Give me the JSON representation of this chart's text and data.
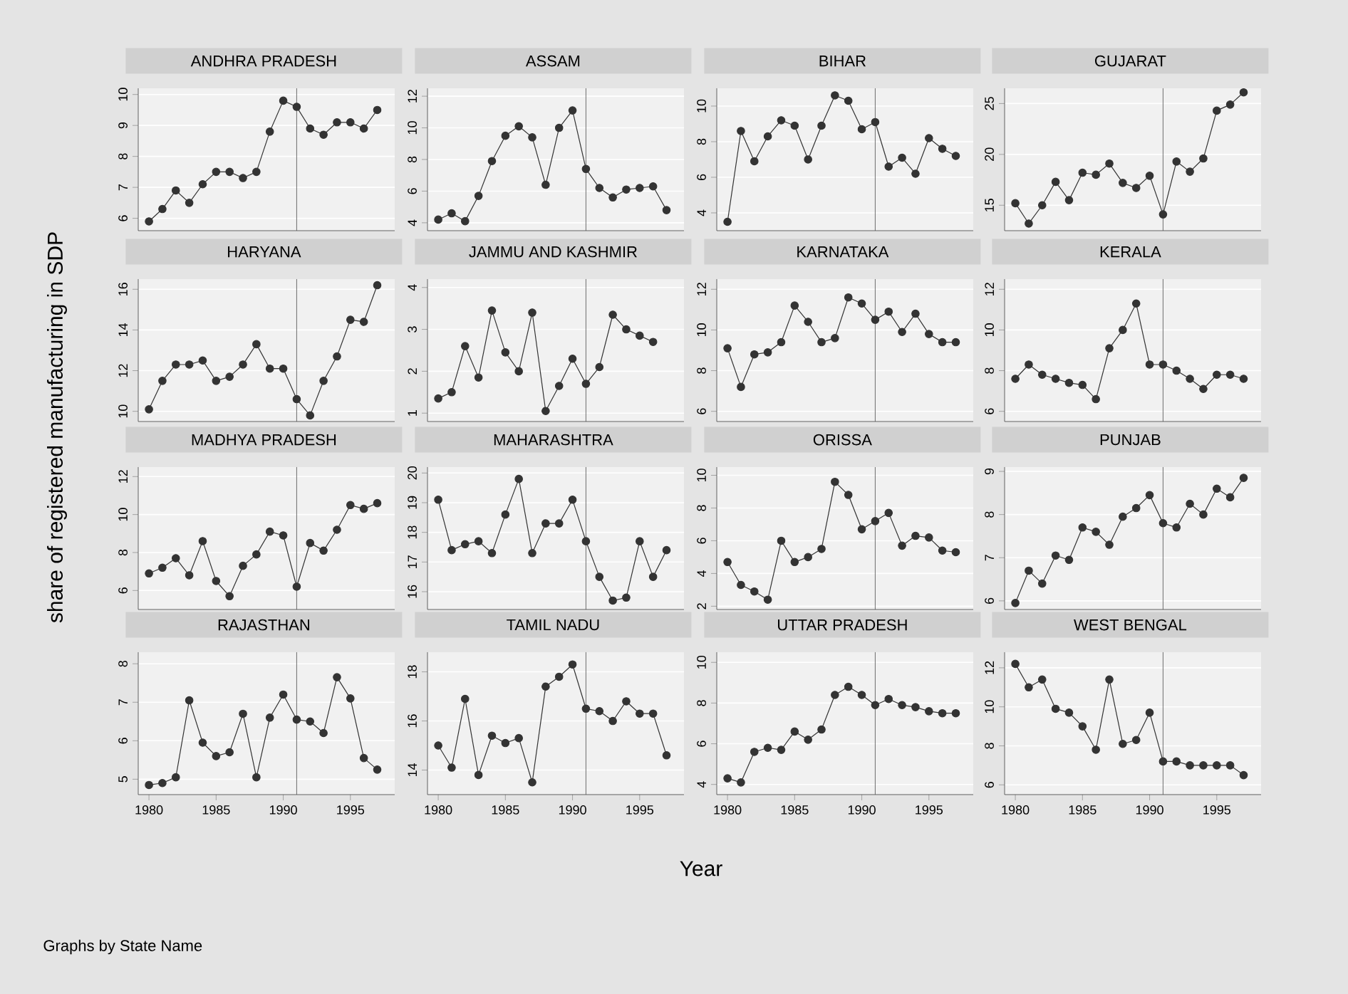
{
  "chart_data": [
    {
      "type": "line",
      "title": "ANDHRA PRADESH",
      "x": [
        1980,
        1981,
        1982,
        1983,
        1984,
        1985,
        1986,
        1987,
        1988,
        1989,
        1990,
        1991,
        1992,
        1993,
        1994,
        1995,
        1996,
        1997
      ],
      "values": [
        5.9,
        6.3,
        6.9,
        6.5,
        7.1,
        7.5,
        7.5,
        7.3,
        7.5,
        8.8,
        9.8,
        9.6,
        8.9,
        8.7,
        9.1,
        9.1,
        8.9,
        9.5
      ],
      "color": "#333333",
      "marker": "circle",
      "xlim": [
        1979.2,
        1998.3
      ],
      "xticks": [
        1980,
        1985,
        1990,
        1995
      ],
      "ylim": [
        5.6,
        10.2
      ],
      "yticks": [
        6,
        7,
        8,
        9,
        10
      ],
      "grid": "y",
      "ref_lines": [
        {
          "axis": "x",
          "value": 1991
        }
      ],
      "tick_labels": "y"
    },
    {
      "type": "line",
      "title": "ASSAM",
      "x": [
        1980,
        1981,
        1982,
        1983,
        1984,
        1985,
        1986,
        1987,
        1988,
        1989,
        1990,
        1991,
        1992,
        1993,
        1994,
        1995,
        1996,
        1997
      ],
      "values": [
        4.2,
        4.6,
        4.1,
        5.7,
        7.9,
        9.5,
        10.1,
        9.4,
        6.4,
        10.0,
        11.1,
        7.4,
        6.2,
        5.6,
        6.1,
        6.2,
        6.3,
        4.8
      ],
      "color": "#333333",
      "marker": "circle",
      "xlim": [
        1979.2,
        1998.3
      ],
      "xticks": [
        1980,
        1985,
        1990,
        1995
      ],
      "ylim": [
        3.5,
        12.5
      ],
      "yticks": [
        4,
        6,
        8,
        10,
        12
      ],
      "grid": "y",
      "ref_lines": [
        {
          "axis": "x",
          "value": 1991
        }
      ],
      "tick_labels": "y"
    },
    {
      "type": "line",
      "title": "BIHAR",
      "x": [
        1980,
        1981,
        1982,
        1983,
        1984,
        1985,
        1986,
        1987,
        1988,
        1989,
        1990,
        1991,
        1992,
        1993,
        1994,
        1995,
        1996,
        1997
      ],
      "values": [
        3.5,
        8.6,
        6.9,
        8.3,
        9.2,
        8.9,
        7.0,
        8.9,
        10.6,
        10.3,
        8.7,
        9.1,
        6.6,
        7.1,
        6.2,
        8.2,
        7.6,
        7.2
      ],
      "color": "#333333",
      "marker": "circle",
      "xlim": [
        1979.2,
        1998.3
      ],
      "xticks": [
        1980,
        1985,
        1990,
        1995
      ],
      "ylim": [
        3,
        11
      ],
      "yticks": [
        4,
        6,
        8,
        10
      ],
      "grid": "y",
      "ref_lines": [
        {
          "axis": "x",
          "value": 1991
        }
      ],
      "tick_labels": "y"
    },
    {
      "type": "line",
      "title": "GUJARAT",
      "x": [
        1980,
        1981,
        1982,
        1983,
        1984,
        1985,
        1986,
        1987,
        1988,
        1989,
        1990,
        1991,
        1992,
        1993,
        1994,
        1995,
        1996,
        1997
      ],
      "values": [
        15.2,
        13.2,
        15.0,
        17.3,
        15.5,
        18.2,
        18.0,
        19.1,
        17.2,
        16.7,
        17.9,
        14.1,
        19.3,
        18.3,
        19.6,
        24.3,
        24.9,
        26.1
      ],
      "color": "#333333",
      "marker": "circle",
      "xlim": [
        1979.2,
        1998.3
      ],
      "xticks": [
        1980,
        1985,
        1990,
        1995
      ],
      "ylim": [
        12.5,
        26.5
      ],
      "yticks": [
        15,
        20,
        25
      ],
      "grid": "y",
      "ref_lines": [
        {
          "axis": "x",
          "value": 1991
        }
      ],
      "tick_labels": "y"
    },
    {
      "type": "line",
      "title": "HARYANA",
      "x": [
        1980,
        1981,
        1982,
        1983,
        1984,
        1985,
        1986,
        1987,
        1988,
        1989,
        1990,
        1991,
        1992,
        1993,
        1994,
        1995,
        1996,
        1997
      ],
      "values": [
        10.1,
        11.5,
        12.3,
        12.3,
        12.5,
        11.5,
        11.7,
        12.3,
        13.3,
        12.1,
        12.1,
        10.6,
        9.8,
        11.5,
        12.7,
        14.5,
        14.4,
        16.2
      ],
      "color": "#333333",
      "marker": "circle",
      "xlim": [
        1979.2,
        1998.3
      ],
      "xticks": [
        1980,
        1985,
        1990,
        1995
      ],
      "ylim": [
        9.5,
        16.5
      ],
      "yticks": [
        10,
        12,
        14,
        16
      ],
      "grid": "y",
      "ref_lines": [
        {
          "axis": "x",
          "value": 1991
        }
      ],
      "tick_labels": "y"
    },
    {
      "type": "line",
      "title": "JAMMU AND KASHMIR",
      "x": [
        1980,
        1981,
        1982,
        1983,
        1984,
        1985,
        1986,
        1987,
        1988,
        1989,
        1990,
        1991,
        1992,
        1993,
        1994,
        1995,
        1996
      ],
      "values": [
        1.35,
        1.5,
        2.6,
        1.85,
        3.45,
        2.45,
        2.0,
        3.4,
        1.05,
        1.65,
        2.3,
        1.7,
        2.1,
        3.35,
        3.0,
        2.85,
        2.7
      ],
      "color": "#333333",
      "marker": "circle",
      "xlim": [
        1979.2,
        1998.3
      ],
      "xticks": [
        1980,
        1985,
        1990,
        1995
      ],
      "ylim": [
        0.8,
        4.2
      ],
      "yticks": [
        1,
        2,
        3,
        4
      ],
      "grid": "y",
      "ref_lines": [
        {
          "axis": "x",
          "value": 1991
        }
      ],
      "tick_labels": "y"
    },
    {
      "type": "line",
      "title": "KARNATAKA",
      "x": [
        1980,
        1981,
        1982,
        1983,
        1984,
        1985,
        1986,
        1987,
        1988,
        1989,
        1990,
        1991,
        1992,
        1993,
        1994,
        1995,
        1996,
        1997
      ],
      "values": [
        9.1,
        7.2,
        8.8,
        8.9,
        9.4,
        11.2,
        10.4,
        9.4,
        9.6,
        11.6,
        11.3,
        10.5,
        10.9,
        9.9,
        10.8,
        9.8,
        9.4,
        9.4
      ],
      "color": "#333333",
      "marker": "circle",
      "xlim": [
        1979.2,
        1998.3
      ],
      "xticks": [
        1980,
        1985,
        1990,
        1995
      ],
      "ylim": [
        5.5,
        12.5
      ],
      "yticks": [
        6,
        8,
        10,
        12
      ],
      "grid": "y",
      "ref_lines": [
        {
          "axis": "x",
          "value": 1991
        }
      ],
      "tick_labels": "y"
    },
    {
      "type": "line",
      "title": "KERALA",
      "x": [
        1980,
        1981,
        1982,
        1983,
        1984,
        1985,
        1986,
        1987,
        1988,
        1989,
        1990,
        1991,
        1992,
        1993,
        1994,
        1995,
        1996,
        1997
      ],
      "values": [
        7.6,
        8.3,
        7.8,
        7.6,
        7.4,
        7.3,
        6.6,
        9.1,
        10.0,
        11.3,
        8.3,
        8.3,
        8.0,
        7.6,
        7.1,
        7.8,
        7.8,
        7.6
      ],
      "color": "#333333",
      "marker": "circle",
      "xlim": [
        1979.2,
        1998.3
      ],
      "xticks": [
        1980,
        1985,
        1990,
        1995
      ],
      "ylim": [
        5.5,
        12.5
      ],
      "yticks": [
        6,
        8,
        10,
        12
      ],
      "grid": "y",
      "ref_lines": [
        {
          "axis": "x",
          "value": 1991
        }
      ],
      "tick_labels": "y"
    },
    {
      "type": "line",
      "title": "MADHYA PRADESH",
      "ylabel": "share of registered manufacturing in SDP",
      "x": [
        1980,
        1981,
        1982,
        1983,
        1984,
        1985,
        1986,
        1987,
        1988,
        1989,
        1990,
        1991,
        1992,
        1993,
        1994,
        1995,
        1996,
        1997
      ],
      "values": [
        6.9,
        7.2,
        7.7,
        6.8,
        8.6,
        6.5,
        5.7,
        7.3,
        7.9,
        9.1,
        8.9,
        6.2,
        8.5,
        8.1,
        9.2,
        10.5,
        10.3,
        10.6
      ],
      "color": "#333333",
      "marker": "circle",
      "xlim": [
        1979.2,
        1998.3
      ],
      "xticks": [
        1980,
        1985,
        1990,
        1995
      ],
      "ylim": [
        5,
        12.5
      ],
      "yticks": [
        6,
        8,
        10,
        12
      ],
      "grid": "y",
      "ref_lines": [
        {
          "axis": "x",
          "value": 1991
        }
      ],
      "tick_labels": "y"
    },
    {
      "type": "line",
      "title": "MAHARASHTRA",
      "x": [
        1980,
        1981,
        1982,
        1983,
        1984,
        1985,
        1986,
        1987,
        1988,
        1989,
        1990,
        1991,
        1992,
        1993,
        1994,
        1995,
        1996,
        1997
      ],
      "values": [
        19.1,
        17.4,
        17.6,
        17.7,
        17.3,
        18.6,
        19.8,
        17.3,
        18.3,
        18.3,
        19.1,
        17.7,
        16.5,
        15.7,
        15.8,
        17.7,
        16.5,
        17.4
      ],
      "color": "#333333",
      "marker": "circle",
      "xlim": [
        1979.2,
        1998.3
      ],
      "xticks": [
        1980,
        1985,
        1990,
        1995
      ],
      "ylim": [
        15.4,
        20.2
      ],
      "yticks": [
        16,
        17,
        18,
        19,
        20
      ],
      "grid": "y",
      "ref_lines": [
        {
          "axis": "x",
          "value": 1991
        }
      ],
      "tick_labels": "y"
    },
    {
      "type": "line",
      "title": "ORISSA",
      "x": [
        1980,
        1981,
        1982,
        1983,
        1984,
        1985,
        1986,
        1987,
        1988,
        1989,
        1990,
        1991,
        1992,
        1993,
        1994,
        1995,
        1996,
        1997
      ],
      "values": [
        4.7,
        3.3,
        2.9,
        2.4,
        6.0,
        4.7,
        5.0,
        5.5,
        9.6,
        8.8,
        6.7,
        7.2,
        7.7,
        5.7,
        6.3,
        6.2,
        5.4,
        5.3
      ],
      "color": "#333333",
      "marker": "circle",
      "xlim": [
        1979.2,
        1998.3
      ],
      "xticks": [
        1980,
        1985,
        1990,
        1995
      ],
      "ylim": [
        1.8,
        10.5
      ],
      "yticks": [
        2,
        4,
        6,
        8,
        10
      ],
      "grid": "y",
      "ref_lines": [
        {
          "axis": "x",
          "value": 1991
        }
      ],
      "tick_labels": "y"
    },
    {
      "type": "line",
      "title": "PUNJAB",
      "x": [
        1980,
        1981,
        1982,
        1983,
        1984,
        1985,
        1986,
        1987,
        1988,
        1989,
        1990,
        1991,
        1992,
        1993,
        1994,
        1995,
        1996,
        1997
      ],
      "values": [
        5.95,
        6.7,
        6.4,
        7.05,
        6.95,
        7.7,
        7.6,
        7.3,
        7.95,
        8.15,
        8.45,
        7.8,
        7.7,
        8.25,
        8.0,
        8.6,
        8.4,
        8.85
      ],
      "color": "#333333",
      "marker": "circle",
      "xlim": [
        1979.2,
        1998.3
      ],
      "xticks": [
        1980,
        1985,
        1990,
        1995
      ],
      "ylim": [
        5.8,
        9.1
      ],
      "yticks": [
        6,
        7,
        8,
        9
      ],
      "grid": "y",
      "ref_lines": [
        {
          "axis": "x",
          "value": 1991
        }
      ],
      "tick_labels": "y"
    },
    {
      "type": "line",
      "title": "RAJASTHAN",
      "annotations": [
        "Graphs by State Name"
      ],
      "x": [
        1980,
        1981,
        1982,
        1983,
        1984,
        1985,
        1986,
        1987,
        1988,
        1989,
        1990,
        1991,
        1992,
        1993,
        1994,
        1995,
        1996,
        1997
      ],
      "values": [
        4.85,
        4.9,
        5.05,
        7.05,
        5.95,
        5.6,
        5.7,
        6.7,
        5.05,
        6.6,
        7.2,
        6.55,
        6.5,
        6.2,
        7.65,
        7.1,
        5.55,
        5.25
      ],
      "color": "#333333",
      "marker": "circle",
      "xlim": [
        1979.2,
        1998.3
      ],
      "xticks": [
        1980,
        1985,
        1990,
        1995
      ],
      "ylim": [
        4.6,
        8.3
      ],
      "yticks": [
        5,
        6,
        7,
        8
      ],
      "grid": "y",
      "ref_lines": [
        {
          "axis": "x",
          "value": 1991
        }
      ]
    },
    {
      "type": "line",
      "title": "TAMIL NADU",
      "x": [
        1980,
        1981,
        1982,
        1983,
        1984,
        1985,
        1986,
        1987,
        1988,
        1989,
        1990,
        1991,
        1992,
        1993,
        1994,
        1995,
        1996,
        1997
      ],
      "values": [
        15.0,
        14.1,
        16.9,
        13.8,
        15.4,
        15.1,
        15.3,
        13.5,
        17.4,
        17.8,
        18.3,
        16.5,
        16.4,
        16.0,
        16.8,
        16.3,
        16.3,
        14.6
      ],
      "color": "#333333",
      "marker": "circle",
      "xlim": [
        1979.2,
        1998.3
      ],
      "xticks": [
        1980,
        1985,
        1990,
        1995
      ],
      "ylim": [
        13,
        18.8
      ],
      "yticks": [
        14,
        16,
        18
      ],
      "grid": "y",
      "ref_lines": [
        {
          "axis": "x",
          "value": 1991
        }
      ]
    },
    {
      "type": "line",
      "title": "UTTAR PRADESH",
      "xlabel": "Year",
      "x": [
        1980,
        1981,
        1982,
        1983,
        1984,
        1985,
        1986,
        1987,
        1988,
        1989,
        1990,
        1991,
        1992,
        1993,
        1994,
        1995,
        1996,
        1997
      ],
      "values": [
        4.3,
        4.1,
        5.6,
        5.8,
        5.7,
        6.6,
        6.2,
        6.7,
        8.4,
        8.8,
        8.4,
        7.9,
        8.2,
        7.9,
        7.8,
        7.6,
        7.5,
        7.5
      ],
      "color": "#333333",
      "marker": "circle",
      "xlim": [
        1979.2,
        1998.3
      ],
      "xticks": [
        1980,
        1985,
        1990,
        1995
      ],
      "ylim": [
        3.5,
        10.5
      ],
      "yticks": [
        4,
        6,
        8,
        10
      ],
      "grid": "y",
      "ref_lines": [
        {
          "axis": "x",
          "value": 1991
        }
      ]
    },
    {
      "type": "line",
      "title": "WEST BENGAL",
      "x": [
        1980,
        1981,
        1982,
        1983,
        1984,
        1985,
        1986,
        1987,
        1988,
        1989,
        1990,
        1991,
        1992,
        1993,
        1994,
        1995,
        1996,
        1997
      ],
      "values": [
        12.2,
        11.0,
        11.4,
        9.9,
        9.7,
        9.0,
        7.8,
        11.4,
        8.1,
        8.3,
        9.7,
        7.2,
        7.2,
        7.0,
        7.0,
        7.0,
        7.0,
        6.5
      ],
      "color": "#333333",
      "marker": "circle",
      "xlim": [
        1979.2,
        1998.3
      ],
      "xticks": [
        1980,
        1985,
        1990,
        1995
      ],
      "ylim": [
        5.5,
        12.8
      ],
      "yticks": [
        6,
        8,
        10,
        12
      ],
      "grid": "y",
      "ref_lines": [
        {
          "axis": "x",
          "value": 1991
        }
      ]
    }
  ]
}
